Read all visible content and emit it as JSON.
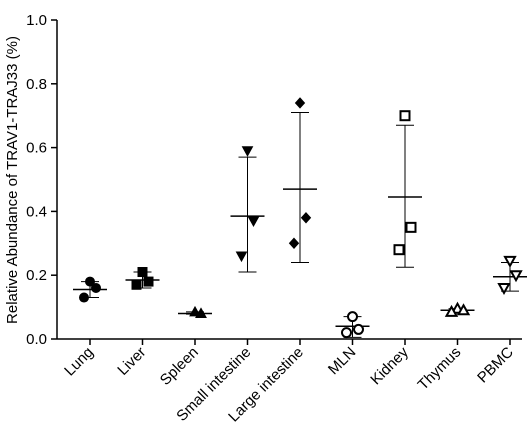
{
  "chart_data": {
    "type": "scatter",
    "subtype": "dot-plot-with-mean-and-sd",
    "ylabel": "Relative Abundance of TRAV1-TRAJ33 (%)",
    "xlabel": "",
    "ylim": [
      0,
      1.0
    ],
    "yticks": [
      "0.0",
      "0.2",
      "0.4",
      "0.6",
      "0.8",
      "1.0"
    ],
    "categories": [
      "Lung",
      "Liver",
      "Spleen",
      "Small intestine",
      "Large intestine",
      "MLN",
      "Kidney",
      "Thymus",
      "PBMC"
    ],
    "groups": [
      {
        "category": "Lung",
        "marker": "circle",
        "filled": true,
        "points": [
          0.18,
          0.16,
          0.13
        ],
        "mean": 0.155,
        "sd_low": 0.13,
        "sd_high": 0.18
      },
      {
        "category": "Liver",
        "marker": "square",
        "filled": true,
        "points": [
          0.21,
          0.18,
          0.17
        ],
        "mean": 0.185,
        "sd_low": 0.16,
        "sd_high": 0.21
      },
      {
        "category": "Spleen",
        "marker": "triangle-up",
        "filled": true,
        "points": [
          0.085,
          0.08,
          0.08
        ],
        "mean": 0.08,
        "sd_low": 0.078,
        "sd_high": 0.085
      },
      {
        "category": "Small intestine",
        "marker": "triangle-down",
        "filled": true,
        "points": [
          0.59,
          0.37,
          0.26
        ],
        "mean": 0.385,
        "sd_low": 0.21,
        "sd_high": 0.57
      },
      {
        "category": "Large intestine",
        "marker": "diamond",
        "filled": true,
        "points": [
          0.74,
          0.38,
          0.3
        ],
        "mean": 0.47,
        "sd_low": 0.24,
        "sd_high": 0.71
      },
      {
        "category": "MLN",
        "marker": "circle",
        "filled": false,
        "points": [
          0.07,
          0.03,
          0.02
        ],
        "mean": 0.04,
        "sd_low": 0.005,
        "sd_high": 0.07
      },
      {
        "category": "Kidney",
        "marker": "square",
        "filled": false,
        "points": [
          0.7,
          0.35,
          0.28
        ],
        "mean": 0.445,
        "sd_low": 0.225,
        "sd_high": 0.67
      },
      {
        "category": "Thymus",
        "marker": "triangle-up",
        "filled": false,
        "points": [
          0.095,
          0.09,
          0.085
        ],
        "mean": 0.09,
        "sd_low": 0.085,
        "sd_high": 0.095
      },
      {
        "category": "PBMC",
        "marker": "triangle-down",
        "filled": false,
        "points": [
          0.245,
          0.2,
          0.16
        ],
        "mean": 0.195,
        "sd_low": 0.15,
        "sd_high": 0.24
      }
    ],
    "grid": false,
    "legend": "none",
    "colors": {
      "marker": "#000000",
      "axis": "#000000",
      "error_bar": "#000000"
    }
  }
}
